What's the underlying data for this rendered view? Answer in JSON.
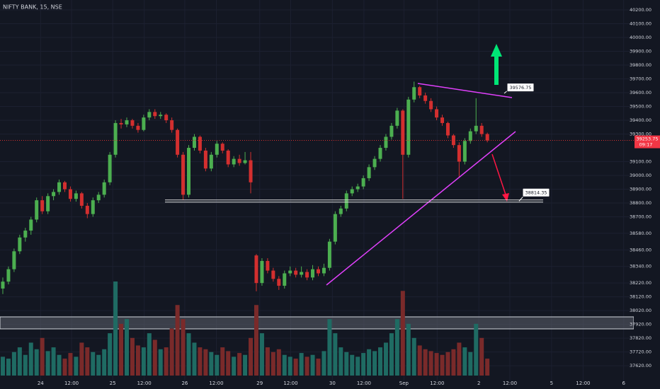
{
  "chart_data": {
    "type": "candlestick",
    "title": "NIFTY BANK, 15, NSE",
    "up_color": "#4caf50",
    "down_color": "#d32f2f",
    "volume_up_color": "#1f6b63",
    "volume_down_color": "#7a2a2a",
    "xlim": [
      -0.5,
      112
    ],
    "xticks": [
      {
        "value": 6.7,
        "label": "24"
      },
      {
        "value": 12.2,
        "label": "12:00"
      },
      {
        "value": 19.5,
        "label": "25"
      },
      {
        "value": 25.1,
        "label": "12:00"
      },
      {
        "value": 32.3,
        "label": "26"
      },
      {
        "value": 37.9,
        "label": "12:00"
      },
      {
        "value": 45.6,
        "label": "29"
      },
      {
        "value": 51.1,
        "label": "12:00"
      },
      {
        "value": 58.5,
        "label": "30"
      },
      {
        "value": 64.1,
        "label": "12:00"
      },
      {
        "value": 71.2,
        "label": "Sep"
      },
      {
        "value": 77.1,
        "label": "12:00"
      },
      {
        "value": 84.5,
        "label": "2"
      },
      {
        "value": 90,
        "label": "12:00"
      },
      {
        "value": 97.4,
        "label": "5"
      },
      {
        "value": 103,
        "label": "12:00"
      },
      {
        "value": 110.2,
        "label": "6"
      }
    ],
    "ylim": [
      37513,
      40272
    ],
    "yticks": [
      {
        "value": 40200,
        "label": "40200.00"
      },
      {
        "value": 40100,
        "label": "40100.00"
      },
      {
        "value": 40000,
        "label": "40000.00"
      },
      {
        "value": 39900,
        "label": "39900.00"
      },
      {
        "value": 39800,
        "label": "39800.00"
      },
      {
        "value": 39700,
        "label": "39700.00"
      },
      {
        "value": 39600,
        "label": "39600.00"
      },
      {
        "value": 39500,
        "label": "39500.00"
      },
      {
        "value": 39400,
        "label": "39400.00"
      },
      {
        "value": 39300,
        "label": "39300.00"
      },
      {
        "value": 39100,
        "label": "39100.00"
      },
      {
        "value": 39000,
        "label": "39000.00"
      },
      {
        "value": 38900,
        "label": "38900.00"
      },
      {
        "value": 38800,
        "label": "38800.00"
      },
      {
        "value": 38700,
        "label": "38700.00"
      },
      {
        "value": 38580,
        "label": "38580.00"
      },
      {
        "value": 38460,
        "label": "38460.00"
      },
      {
        "value": 38340,
        "label": "38340.00"
      },
      {
        "value": 38220,
        "label": "38220.00"
      },
      {
        "value": 38120,
        "label": "38120.00"
      },
      {
        "value": 38020,
        "label": "38020.00"
      },
      {
        "value": 37920,
        "label": "37920.00"
      },
      {
        "value": 37820,
        "label": "37820.00"
      },
      {
        "value": 37720,
        "label": "37720.00"
      },
      {
        "value": 37620,
        "label": "37620.00"
      }
    ],
    "annotations": [
      39576.75,
      38814.35
    ],
    "last_price": 39253.75,
    "countdown": "09:17",
    "candles": [
      [
        38180,
        38260,
        38140,
        38230
      ],
      [
        38230,
        38340,
        38210,
        38320
      ],
      [
        38320,
        38470,
        38300,
        38450
      ],
      [
        38450,
        38570,
        38430,
        38550
      ],
      [
        38550,
        38620,
        38520,
        38600
      ],
      [
        38600,
        38700,
        38570,
        38680
      ],
      [
        38680,
        38840,
        38660,
        38820
      ],
      [
        38820,
        38850,
        38720,
        38740
      ],
      [
        38740,
        38870,
        38720,
        38850
      ],
      [
        38850,
        38900,
        38820,
        38880
      ],
      [
        38880,
        38970,
        38860,
        38950
      ],
      [
        38950,
        38960,
        38880,
        38900
      ],
      [
        38900,
        38920,
        38810,
        38830
      ],
      [
        38830,
        38890,
        38810,
        38870
      ],
      [
        38870,
        38880,
        38760,
        38780
      ],
      [
        38780,
        38800,
        38690,
        38720
      ],
      [
        38720,
        38840,
        38700,
        38820
      ],
      [
        38820,
        38880,
        38800,
        38860
      ],
      [
        38860,
        38970,
        38840,
        38950
      ],
      [
        38950,
        39170,
        38930,
        39150
      ],
      [
        39150,
        39400,
        39130,
        39380
      ],
      [
        39380,
        39410,
        39340,
        39370
      ],
      [
        39370,
        39420,
        39350,
        39400
      ],
      [
        39400,
        39410,
        39340,
        39360
      ],
      [
        39360,
        39380,
        39310,
        39330
      ],
      [
        39330,
        39440,
        39320,
        39420
      ],
      [
        39420,
        39480,
        39400,
        39460
      ],
      [
        39460,
        39480,
        39410,
        39430
      ],
      [
        39430,
        39460,
        39410,
        39440
      ],
      [
        39440,
        39450,
        39380,
        39400
      ],
      [
        39400,
        39420,
        39310,
        39330
      ],
      [
        39330,
        39340,
        39130,
        39150
      ],
      [
        39150,
        39170,
        38820,
        38860
      ],
      [
        38860,
        39220,
        38840,
        39200
      ],
      [
        39200,
        39300,
        39180,
        39280
      ],
      [
        39280,
        39290,
        39160,
        39180
      ],
      [
        39180,
        39200,
        39030,
        39050
      ],
      [
        39050,
        39170,
        39030,
        39150
      ],
      [
        39150,
        39250,
        39130,
        39230
      ],
      [
        39230,
        39240,
        39160,
        39180
      ],
      [
        39180,
        39190,
        39060,
        39080
      ],
      [
        39080,
        39140,
        39060,
        39120
      ],
      [
        39120,
        39150,
        39070,
        39090
      ],
      [
        39090,
        39170,
        39080,
        39110
      ],
      [
        39110,
        39170,
        38870,
        38950
      ],
      [
        38420,
        38430,
        38160,
        38220
      ],
      [
        38220,
        38400,
        38200,
        38380
      ],
      [
        38380,
        38400,
        38290,
        38310
      ],
      [
        38310,
        38330,
        38230,
        38250
      ],
      [
        38250,
        38270,
        38170,
        38200
      ],
      [
        38200,
        38310,
        38180,
        38290
      ],
      [
        38290,
        38340,
        38270,
        38310
      ],
      [
        38310,
        38330,
        38260,
        38280
      ],
      [
        38280,
        38340,
        38260,
        38300
      ],
      [
        38300,
        38320,
        38240,
        38260
      ],
      [
        38260,
        38350,
        38240,
        38320
      ],
      [
        38320,
        38340,
        38270,
        38290
      ],
      [
        38290,
        38360,
        38270,
        38330
      ],
      [
        38330,
        38540,
        38310,
        38520
      ],
      [
        38520,
        38740,
        38500,
        38720
      ],
      [
        38720,
        38780,
        38700,
        38760
      ],
      [
        38760,
        38890,
        38740,
        38870
      ],
      [
        38870,
        38920,
        38850,
        38900
      ],
      [
        38900,
        38940,
        38880,
        38920
      ],
      [
        38920,
        39000,
        38900,
        38980
      ],
      [
        38980,
        39080,
        38960,
        39060
      ],
      [
        39060,
        39140,
        39040,
        39120
      ],
      [
        39120,
        39220,
        39100,
        39200
      ],
      [
        39200,
        39300,
        39180,
        39280
      ],
      [
        39280,
        39380,
        39260,
        39360
      ],
      [
        39360,
        39490,
        39340,
        39470
      ],
      [
        39470,
        39480,
        38830,
        39150
      ],
      [
        39150,
        39570,
        39130,
        39550
      ],
      [
        39550,
        39680,
        39530,
        39640
      ],
      [
        39640,
        39650,
        39560,
        39580
      ],
      [
        39580,
        39600,
        39520,
        39540
      ],
      [
        39540,
        39560,
        39460,
        39480
      ],
      [
        39480,
        39500,
        39400,
        39420
      ],
      [
        39420,
        39440,
        39360,
        39380
      ],
      [
        39380,
        39390,
        39270,
        39290
      ],
      [
        39290,
        39300,
        39200,
        39220
      ],
      [
        39220,
        39240,
        38990,
        39100
      ],
      [
        39100,
        39270,
        39080,
        39250
      ],
      [
        39250,
        39340,
        39230,
        39320
      ],
      [
        39320,
        39560,
        39300,
        39360
      ],
      [
        39360,
        39380,
        39280,
        39300
      ],
      [
        39300,
        39310,
        39240,
        39253.75
      ]
    ],
    "vlim": [
      0,
      100
    ],
    "volume": [
      20,
      18,
      25,
      30,
      22,
      35,
      28,
      40,
      26,
      30,
      22,
      18,
      24,
      20,
      35,
      30,
      25,
      22,
      28,
      45,
      100,
      55,
      60,
      40,
      32,
      30,
      45,
      38,
      28,
      30,
      50,
      75,
      60,
      45,
      35,
      30,
      28,
      25,
      22,
      30,
      26,
      20,
      24,
      22,
      40,
      75,
      45,
      30,
      25,
      28,
      22,
      20,
      18,
      24,
      20,
      22,
      18,
      26,
      60,
      45,
      30,
      25,
      22,
      20,
      24,
      28,
      26,
      30,
      35,
      45,
      60,
      90,
      55,
      40,
      32,
      28,
      26,
      24,
      22,
      25,
      28,
      35,
      30,
      25,
      55,
      40,
      18
    ]
  }
}
